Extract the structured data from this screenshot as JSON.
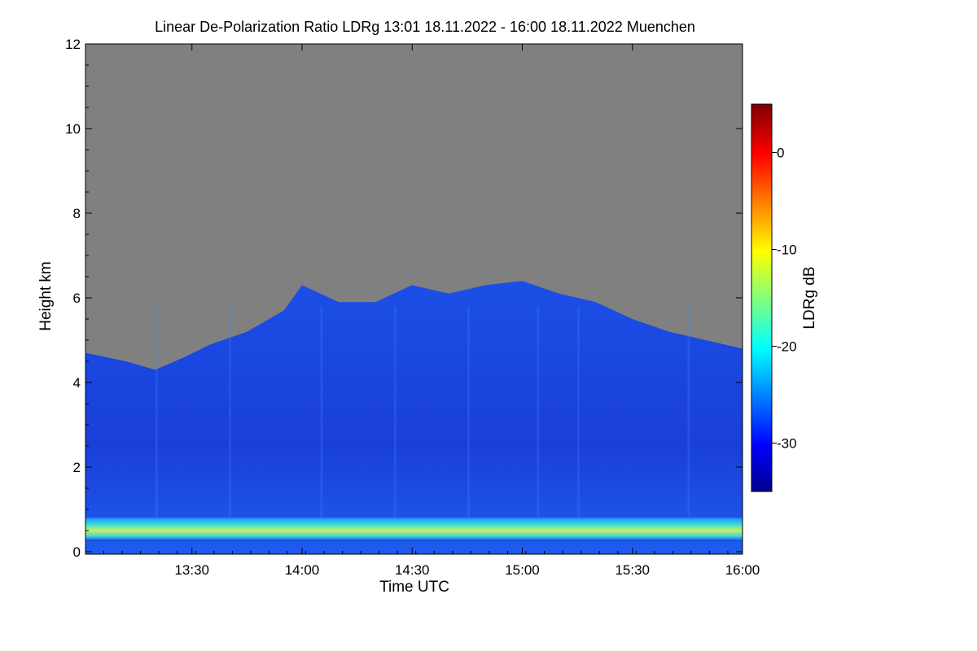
{
  "chart_data": {
    "type": "heatmap",
    "title": "Linear De-Polarization Ratio LDRg   13:01 18.11.2022 - 16:00 18.11.2022 Muenchen",
    "xlabel": "Time UTC",
    "ylabel": "Height km",
    "xlim": [
      "13:01",
      "16:00"
    ],
    "x_ticks": [
      "13:30",
      "14:00",
      "14:30",
      "15:00",
      "15:30",
      "16:00"
    ],
    "ylim": [
      0,
      12
    ],
    "y_ticks": [
      0,
      2,
      4,
      6,
      8,
      10,
      12
    ],
    "colorbar": {
      "label": "LDRg dB",
      "range": [
        -35,
        5
      ],
      "ticks": [
        0,
        -10,
        -20,
        -30
      ]
    },
    "no_data_color": "#808080",
    "cloud_top_km": [
      {
        "t": "13:01",
        "h": 4.7
      },
      {
        "t": "13:12",
        "h": 4.5
      },
      {
        "t": "13:20",
        "h": 4.3
      },
      {
        "t": "13:28",
        "h": 4.6
      },
      {
        "t": "13:35",
        "h": 4.9
      },
      {
        "t": "13:45",
        "h": 5.2
      },
      {
        "t": "13:55",
        "h": 5.7
      },
      {
        "t": "14:00",
        "h": 6.3
      },
      {
        "t": "14:10",
        "h": 5.9
      },
      {
        "t": "14:20",
        "h": 5.9
      },
      {
        "t": "14:30",
        "h": 6.3
      },
      {
        "t": "14:40",
        "h": 6.1
      },
      {
        "t": "14:50",
        "h": 6.3
      },
      {
        "t": "15:00",
        "h": 6.4
      },
      {
        "t": "15:10",
        "h": 6.1
      },
      {
        "t": "15:20",
        "h": 5.9
      },
      {
        "t": "15:30",
        "h": 5.5
      },
      {
        "t": "15:40",
        "h": 5.2
      },
      {
        "t": "15:50",
        "h": 5.0
      },
      {
        "t": "16:00",
        "h": 4.8
      }
    ],
    "surface_layer": {
      "height_km": 0.5,
      "ldr_db": -18
    }
  }
}
